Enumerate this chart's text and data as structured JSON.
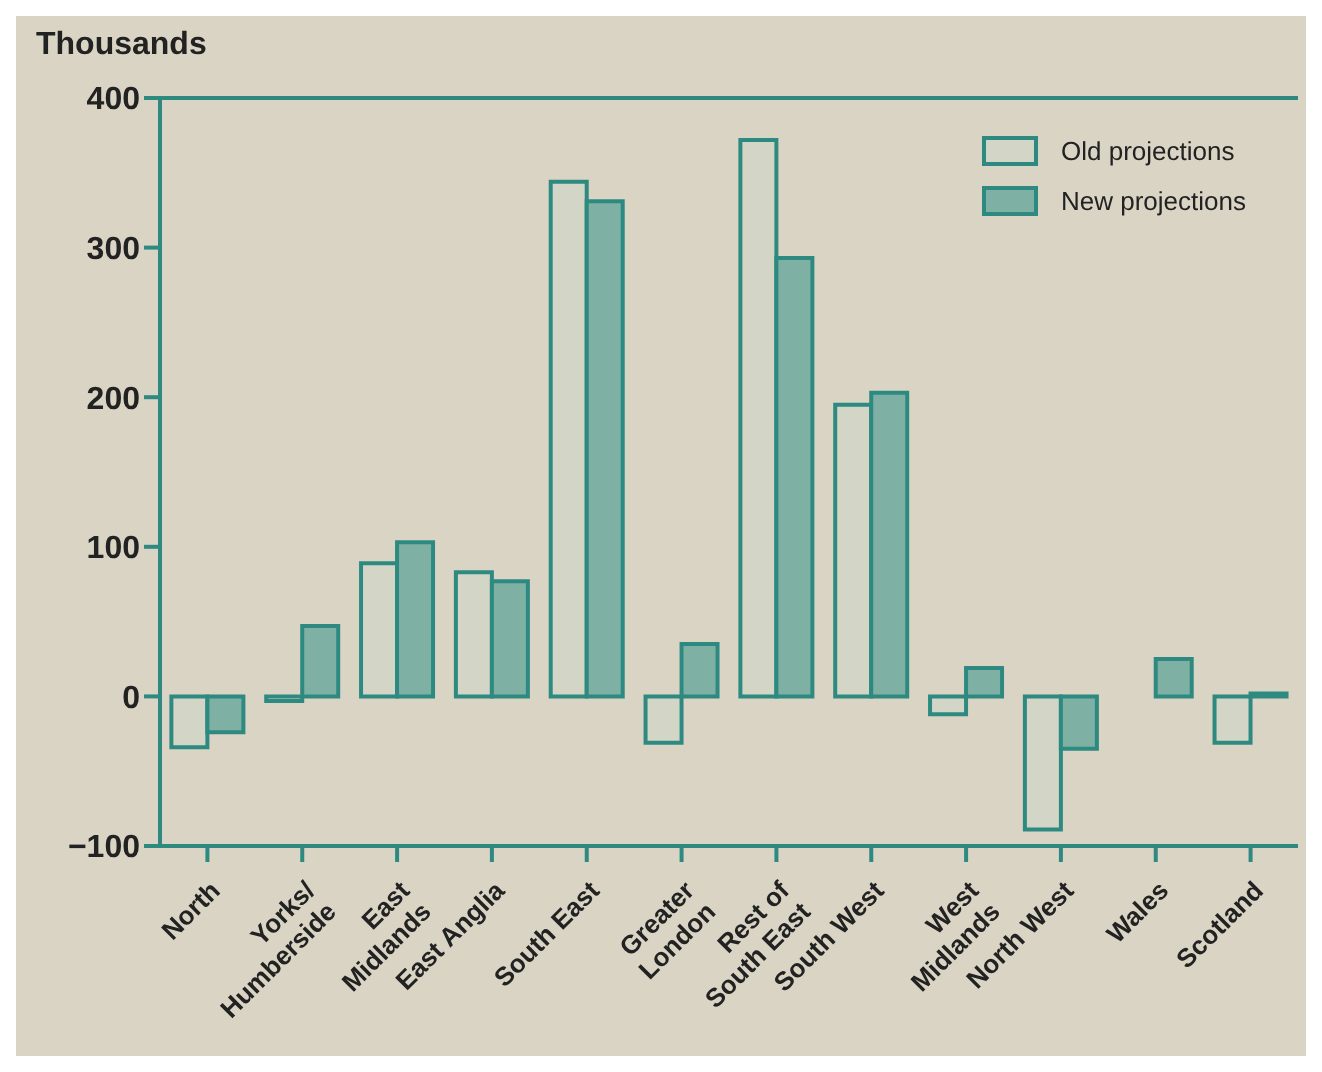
{
  "chart_data": {
    "type": "bar",
    "ylabel": "Thousands",
    "categories": [
      "North",
      "Yorks/\nHumberside",
      "East\nMidlands",
      "East Anglia",
      "South East",
      "Greater\nLondon",
      "Rest of\nSouth East",
      "South West",
      "West\nMidlands",
      "North West",
      "Wales",
      "Scotland"
    ],
    "series": [
      {
        "name": "Old projections",
        "color": "#d3d6c6",
        "values": [
          -34,
          -3,
          89,
          83,
          344,
          -31,
          372,
          195,
          -12,
          -89,
          0,
          -31
        ]
      },
      {
        "name": "New projections",
        "color": "#7fb0a4",
        "values": [
          -24,
          47,
          103,
          77,
          331,
          35,
          293,
          203,
          19,
          -35,
          25,
          2
        ]
      }
    ],
    "ylim": [
      -100,
      400
    ],
    "yticks": [
      -100,
      0,
      100,
      200,
      300,
      400
    ],
    "grid": false,
    "legend": "top right"
  }
}
